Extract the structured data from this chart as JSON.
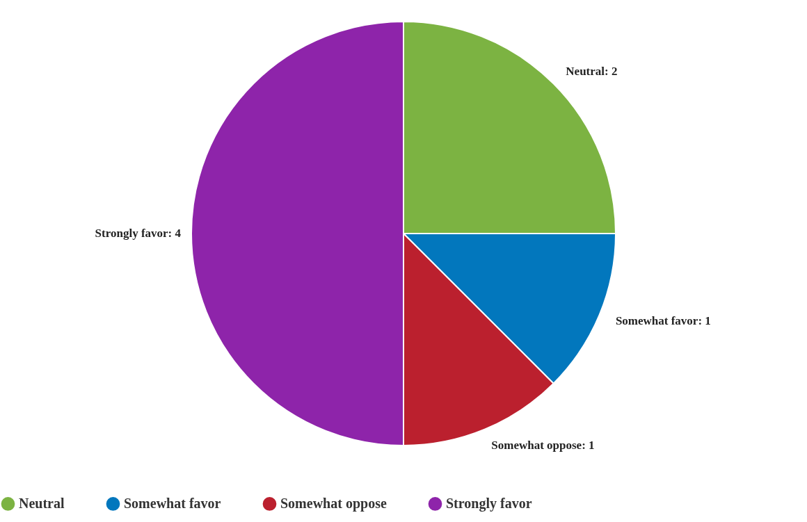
{
  "chart_data": {
    "type": "pie",
    "categories": [
      "Neutral",
      "Somewhat favor",
      "Somewhat oppose",
      "Strongly favor"
    ],
    "values": [
      2,
      1,
      1,
      4
    ],
    "value_labels": [
      "Neutral: 2",
      "Somewhat favor: 1",
      "Somewhat oppose: 1",
      "Strongly favor: 4"
    ],
    "colors": [
      "#7cb342",
      "#0277bd",
      "#bb202e",
      "#8e24aa"
    ],
    "legend": "bottom"
  }
}
